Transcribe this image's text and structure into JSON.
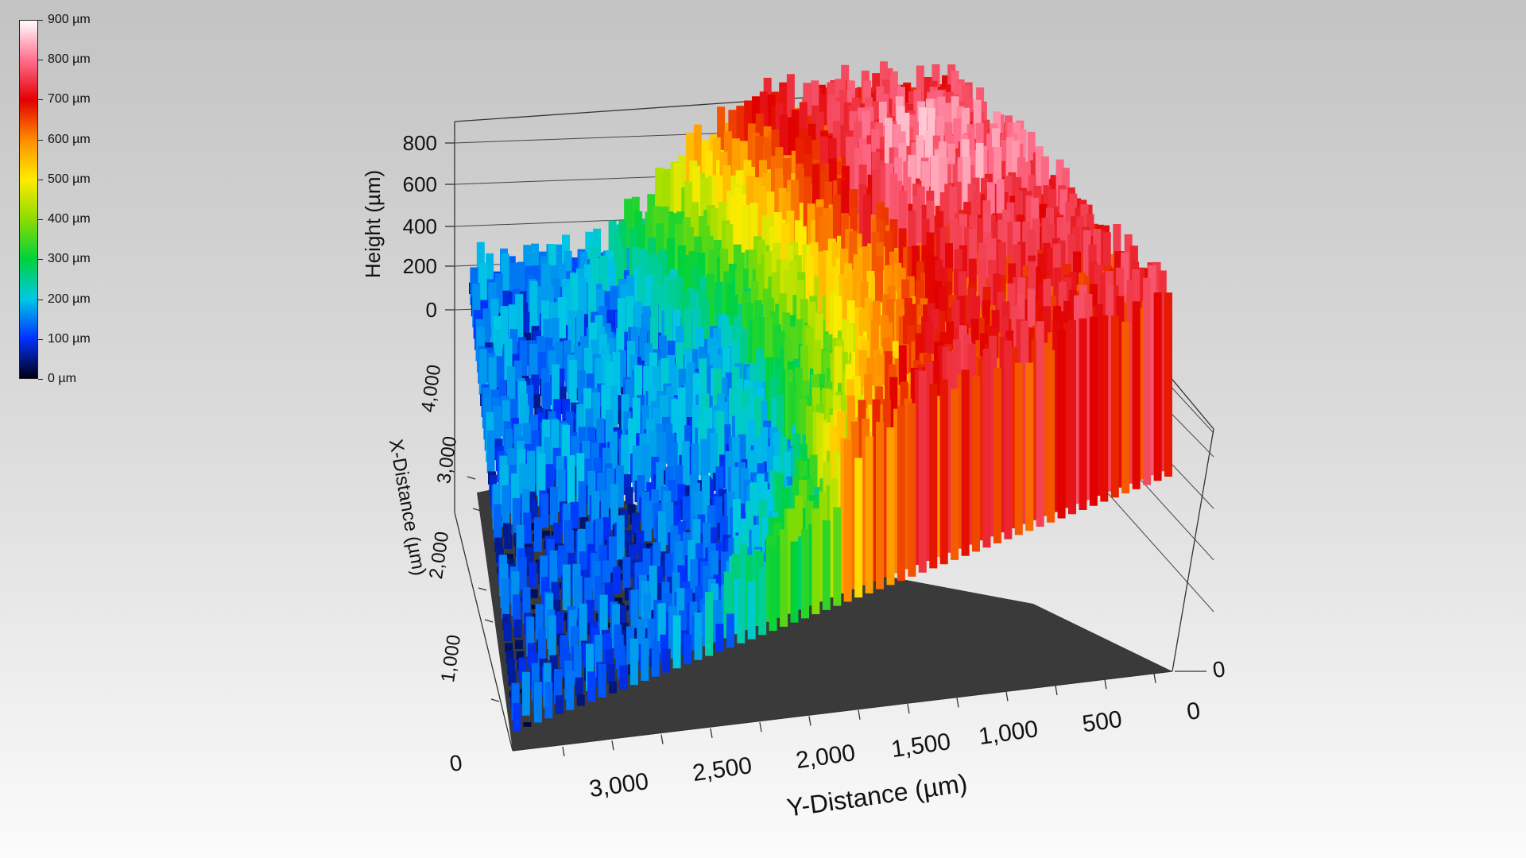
{
  "chart_data": {
    "type": "surface3d",
    "description_units": "µm",
    "colorbar": {
      "ticks": [
        "900 µm",
        "800 µm",
        "700 µm",
        "600 µm",
        "500 µm",
        "400 µm",
        "300 µm",
        "200 µm",
        "100 µm",
        "0 µm"
      ],
      "range": [
        0,
        900
      ],
      "colors": [
        "#ffffff",
        "#ff6e8c",
        "#e10000",
        "#ff8c00",
        "#ffeb00",
        "#8cdc00",
        "#00d23c",
        "#00c8e6",
        "#0032ff",
        "#000014"
      ]
    },
    "axes": {
      "z": {
        "label": "Height (µm)",
        "ticks": [
          "0",
          "200",
          "400",
          "600",
          "800"
        ],
        "range": [
          0,
          900
        ]
      },
      "x": {
        "label": "X-Distance (µm)",
        "ticks": [
          "0",
          "1,000",
          "2,000",
          "3,000",
          "4,000"
        ],
        "range": [
          0,
          4500
        ]
      },
      "y": {
        "label": "Y-Distance (µm)",
        "ticks": [
          "0",
          "500",
          "1,000",
          "1,500",
          "2,000",
          "2,500",
          "3,000"
        ],
        "range": [
          0,
          3500
        ]
      },
      "extra_tick": "0"
    },
    "surface_summary": {
      "low_region_height": [
        0,
        250
      ],
      "high_region_height": [
        600,
        900
      ]
    }
  }
}
